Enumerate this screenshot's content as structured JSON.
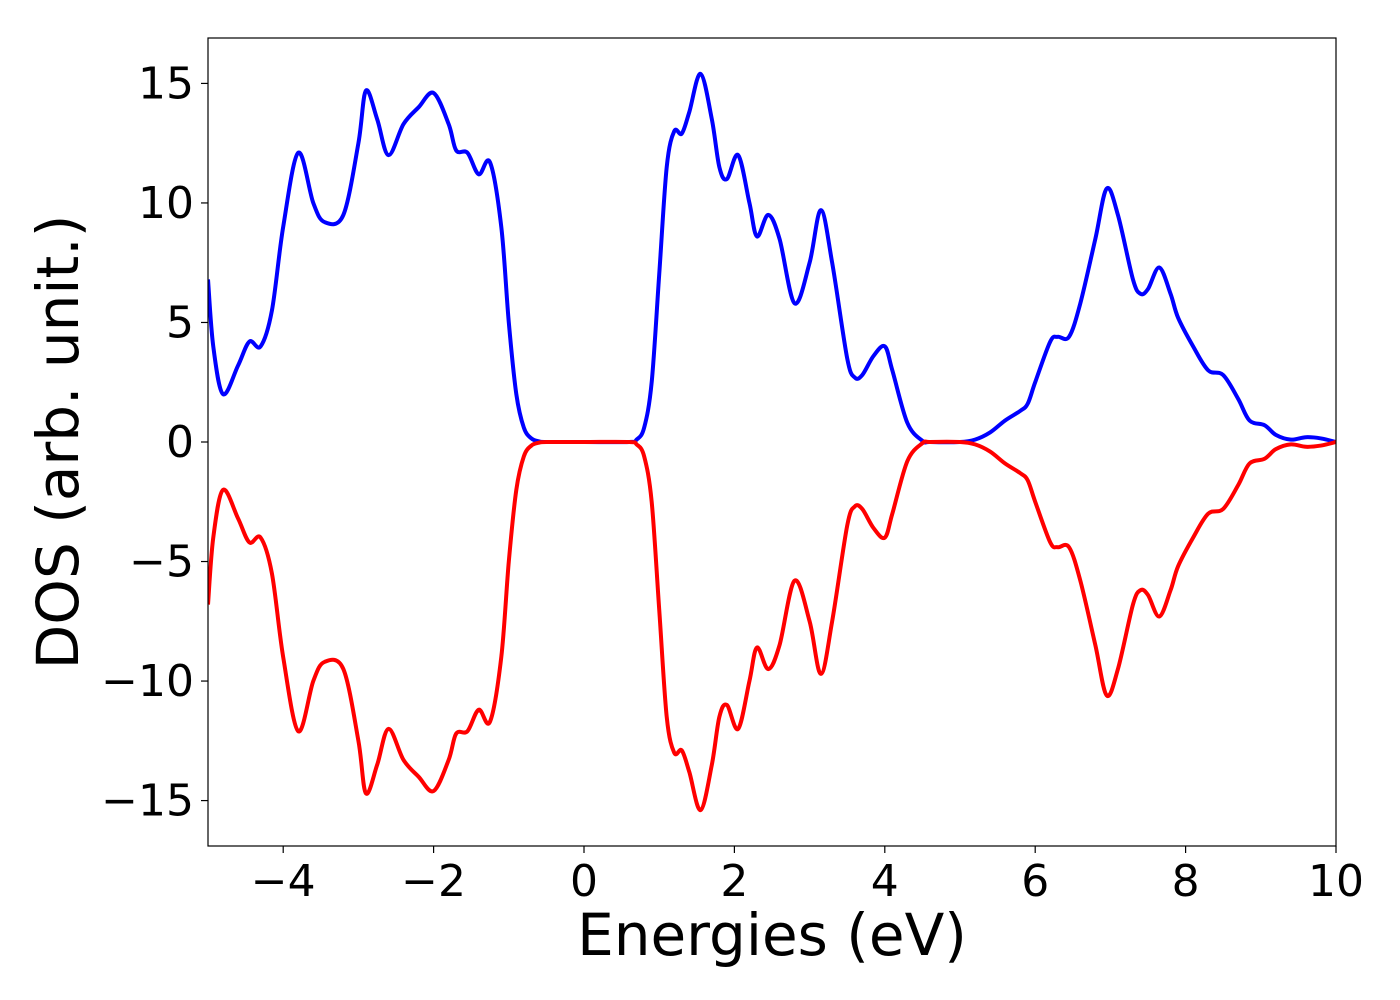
{
  "chart_data": {
    "type": "line",
    "xlabel": "Energies (eV)",
    "ylabel": "DOS (arb. unit.)",
    "x": [
      -5,
      -4.93,
      -4.8,
      -4.6,
      -4.45,
      -4.3,
      -4.15,
      -4,
      -3.8,
      -3.6,
      -3.45,
      -3.2,
      -3,
      -2.9,
      -2.75,
      -2.6,
      -2.4,
      -2.2,
      -2,
      -1.8,
      -1.7,
      -1.55,
      -1.4,
      -1.25,
      -1.1,
      -1,
      -0.9,
      -0.8,
      -0.7,
      -0.6,
      -0.5,
      0,
      0.6,
      0.7,
      0.8,
      0.9,
      1,
      1.1,
      1.2,
      1.3,
      1.4,
      1.55,
      1.7,
      1.8,
      1.9,
      2.05,
      2.2,
      2.3,
      2.45,
      2.6,
      2.8,
      3,
      3.15,
      3.3,
      3.5,
      3.6,
      3.7,
      3.85,
      4,
      4.1,
      4.3,
      4.5,
      4.6,
      5,
      5.2,
      5.4,
      5.6,
      5.8,
      5.9,
      6,
      6.2,
      6.3,
      6.45,
      6.6,
      6.8,
      6.95,
      7.1,
      7.3,
      7.4,
      7.5,
      7.65,
      7.8,
      7.9,
      8.1,
      8.3,
      8.5,
      8.7,
      8.85,
      9.05,
      9.2,
      9.4,
      9.6,
      9.8,
      10
    ],
    "series": [
      {
        "color": "#0000ff",
        "values": [
          6.8,
          4,
          2,
          3.2,
          4.2,
          4,
          5.5,
          9,
          12.1,
          10,
          9.2,
          9.5,
          12.5,
          14.7,
          13.5,
          12,
          13.3,
          14,
          14.6,
          13.3,
          12.2,
          12.1,
          11.2,
          11.7,
          9,
          5,
          2,
          0.6,
          0.15,
          0.03,
          0,
          0,
          0,
          0.1,
          0.6,
          2.5,
          7,
          11.5,
          13,
          12.9,
          13.8,
          15.4,
          13.5,
          11.5,
          11,
          12,
          10,
          8.6,
          9.5,
          8.5,
          5.8,
          7.5,
          9.7,
          7.5,
          3.5,
          2.7,
          2.8,
          3.6,
          4,
          3,
          0.8,
          0.05,
          0,
          0,
          0.1,
          0.4,
          0.9,
          1.3,
          1.6,
          2.5,
          4.2,
          4.4,
          4.4,
          5.8,
          8.5,
          10.6,
          9.5,
          6.8,
          6.2,
          6.4,
          7.3,
          6.2,
          5.2,
          4,
          3,
          2.8,
          1.8,
          0.9,
          0.7,
          0.3,
          0.1,
          0.2,
          0.15,
          0
        ]
      },
      {
        "color": "#ff0000",
        "values": [
          -6.8,
          -4,
          -2,
          -3.2,
          -4.2,
          -4,
          -5.5,
          -9,
          -12.1,
          -10,
          -9.2,
          -9.5,
          -12.5,
          -14.7,
          -13.5,
          -12,
          -13.3,
          -14,
          -14.6,
          -13.3,
          -12.2,
          -12.1,
          -11.2,
          -11.7,
          -9,
          -5,
          -2,
          -0.6,
          -0.15,
          -0.03,
          0,
          0,
          0,
          -0.1,
          -0.6,
          -2.5,
          -7,
          -11.5,
          -13,
          -12.9,
          -13.8,
          -15.4,
          -13.5,
          -11.5,
          -11,
          -12,
          -10,
          -8.6,
          -9.5,
          -8.5,
          -5.8,
          -7.5,
          -9.7,
          -7.5,
          -3.5,
          -2.7,
          -2.8,
          -3.6,
          -4,
          -3,
          -0.8,
          -0.05,
          0,
          0,
          -0.1,
          -0.4,
          -0.9,
          -1.3,
          -1.6,
          -2.5,
          -4.2,
          -4.4,
          -4.4,
          -5.8,
          -8.5,
          -10.6,
          -9.5,
          -6.8,
          -6.2,
          -6.4,
          -7.3,
          -6.2,
          -5.2,
          -4,
          -3,
          -2.8,
          -1.8,
          -0.9,
          -0.7,
          -0.3,
          -0.1,
          -0.2,
          -0.15,
          0
        ]
      }
    ],
    "xlim": [
      -5,
      10
    ],
    "xticks": [
      {
        "value": -4,
        "label": "−4"
      },
      {
        "value": -2,
        "label": "−2"
      },
      0,
      2,
      4,
      6,
      8,
      10
    ],
    "ylim": [
      -16.9,
      16.9
    ],
    "yticks": [
      {
        "value": -15,
        "label": "−15"
      },
      {
        "value": -10,
        "label": "−10"
      },
      {
        "value": -5,
        "label": "−5"
      },
      0,
      5,
      10,
      15
    ],
    "grid": false
  }
}
